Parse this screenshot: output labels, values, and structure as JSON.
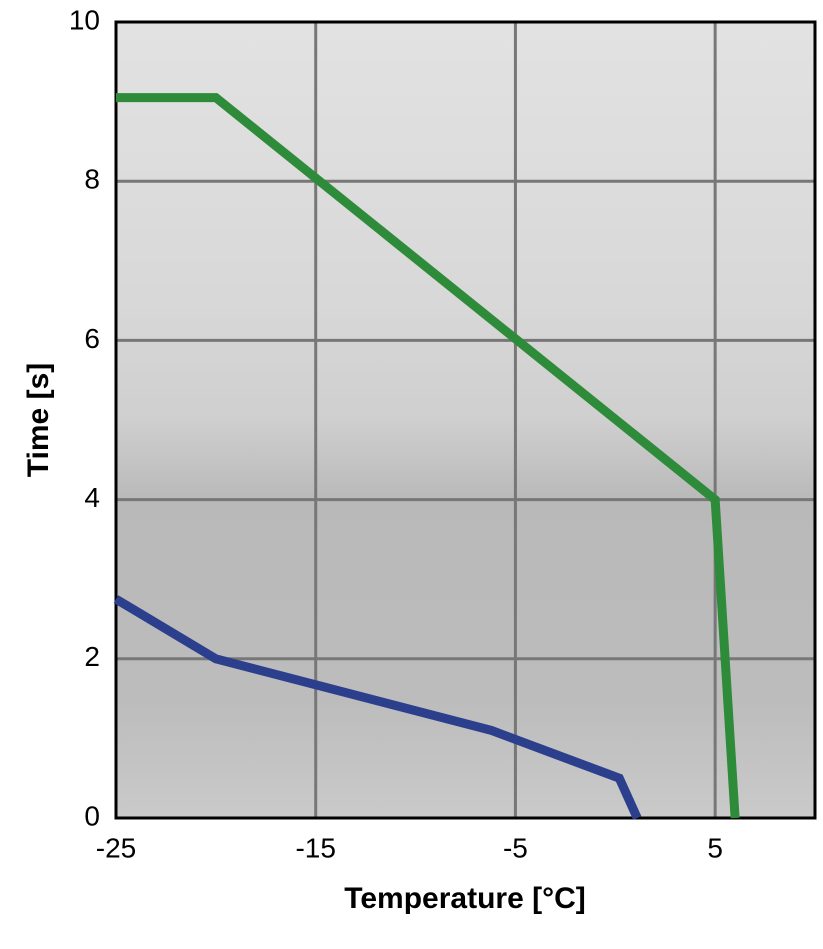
{
  "chart_data": {
    "type": "line",
    "xlabel": "Temperature [°C]",
    "ylabel": "Time [s]",
    "xlim": [
      -25,
      10
    ],
    "ylim": [
      0,
      10
    ],
    "xticks": [
      -25,
      -15,
      -5,
      5
    ],
    "yticks": [
      0,
      2,
      4,
      6,
      8,
      10
    ],
    "grid": true,
    "series": [
      {
        "color": "#2e8b3a",
        "x": [
          -25,
          -20,
          5,
          6
        ],
        "values": [
          9.05,
          9.05,
          4,
          0
        ]
      },
      {
        "color": "#2b3f8c",
        "x": [
          -25,
          -20,
          -6.2,
          0.2,
          1.1
        ],
        "values": [
          2.75,
          2.0,
          1.1,
          0.5,
          0
        ]
      }
    ]
  }
}
